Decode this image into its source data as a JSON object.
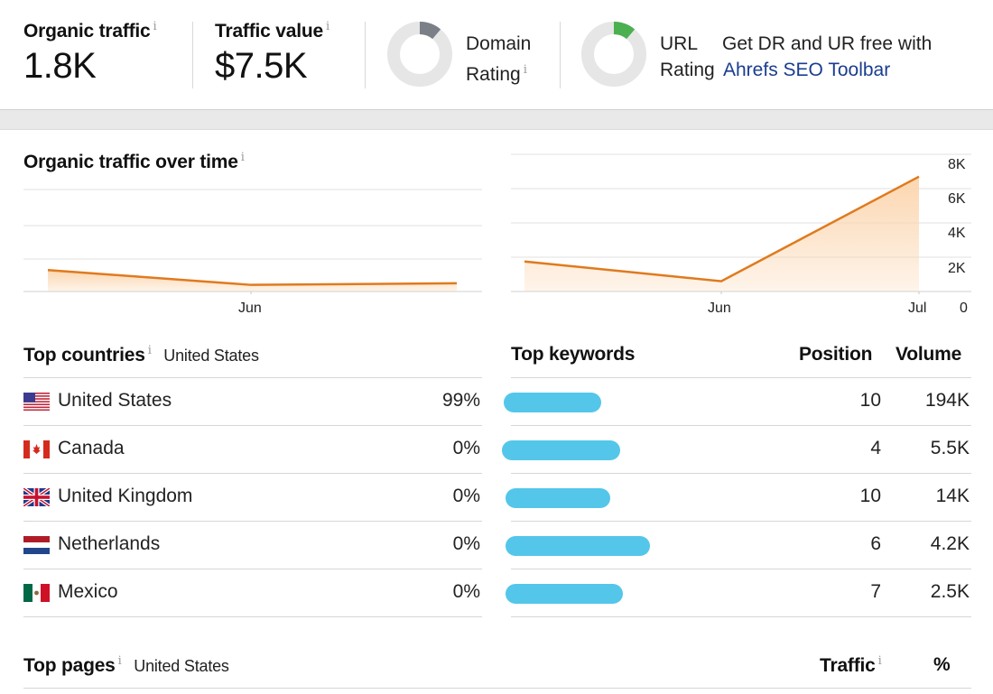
{
  "metrics": {
    "organic_traffic_label": "Organic traffic",
    "organic_traffic_value": "1.8K",
    "traffic_value_label": "Traffic value",
    "traffic_value_value": "$7.5K",
    "domain_rating_line1": "Domain",
    "domain_rating_line2": "Rating",
    "url_rating_line1": "URL",
    "url_rating_line2": "Rating",
    "promo_line1": "Get DR and UR free with",
    "promo_link": "Ahrefs SEO Toolbar",
    "info": "i"
  },
  "colors": {
    "line": "#e07a1e",
    "area": "#fbd4ac",
    "domain_rating_arc": "#7a7f88",
    "url_rating_arc": "#4caf50",
    "ring_bg": "#e6e6e6",
    "redaction": "#54c6ea"
  },
  "chart_data": [
    {
      "type": "area",
      "title": "Organic traffic over time",
      "x": [
        "",
        "Jun",
        ""
      ],
      "x_tick_labels": [
        "Jun"
      ],
      "values": [
        1300,
        400,
        500
      ],
      "ylim": [
        0,
        8000
      ],
      "grid": true
    },
    {
      "type": "area",
      "x": [
        "",
        "Jun",
        "Jul"
      ],
      "x_tick_labels": [
        "Jun",
        "Jul"
      ],
      "y_tick_labels": [
        "8K",
        "6K",
        "4K",
        "2K",
        "0"
      ],
      "values": [
        1750,
        600,
        6700
      ],
      "ylim": [
        0,
        8000
      ],
      "grid": true
    }
  ],
  "chart_text": {
    "title": "Organic traffic over time",
    "left_x_jun": "Jun",
    "right_x_jun": "Jun",
    "right_x_jul": "Jul",
    "y8": "8K",
    "y6": "6K",
    "y4": "4K",
    "y2": "2K",
    "y0": "0"
  },
  "countries": {
    "heading": "Top countries",
    "filter": "United States",
    "rows": [
      {
        "flag": "us-flag-icon",
        "name": "United States",
        "pct": "99%"
      },
      {
        "flag": "ca-flag-icon",
        "name": "Canada",
        "pct": "0%"
      },
      {
        "flag": "gb-flag-icon",
        "name": "United Kingdom",
        "pct": "0%"
      },
      {
        "flag": "nl-flag-icon",
        "name": "Netherlands",
        "pct": "0%"
      },
      {
        "flag": "mx-flag-icon",
        "name": "Mexico",
        "pct": "0%"
      }
    ]
  },
  "keywords": {
    "heading": "Top keywords",
    "col_position": "Position",
    "col_volume": "Volume",
    "rows": [
      {
        "position": "10",
        "volume": "194K"
      },
      {
        "position": "4",
        "volume": "5.5K"
      },
      {
        "position": "10",
        "volume": "14K"
      },
      {
        "position": "6",
        "volume": "4.2K"
      },
      {
        "position": "7",
        "volume": "2.5K"
      }
    ]
  },
  "pages": {
    "heading": "Top pages",
    "filter": "United States",
    "col_traffic": "Traffic",
    "col_pct": "%"
  }
}
